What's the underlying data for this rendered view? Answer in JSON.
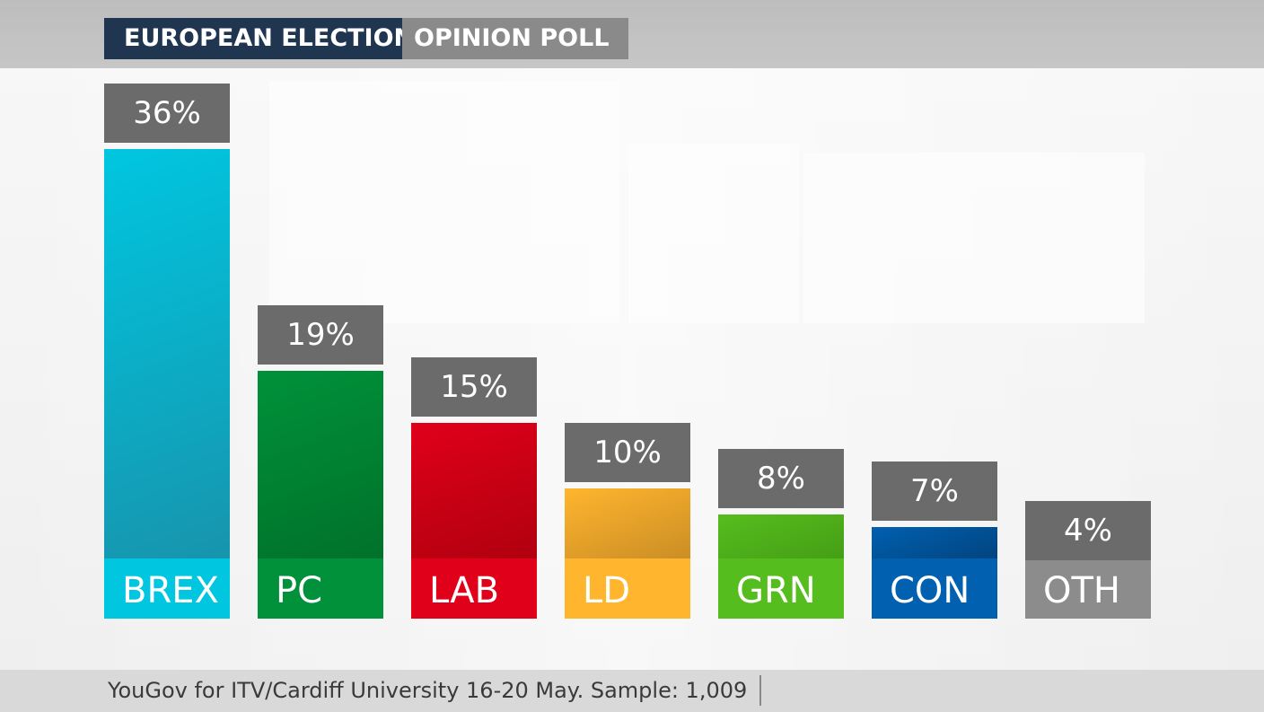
{
  "header": {
    "title": "EUROPEAN ELECTION",
    "subtitle": "OPINION POLL"
  },
  "footer": {
    "source": "YouGov for ITV/Cardiff University 16-20 May. Sample: 1,009"
  },
  "chart_data": {
    "type": "bar",
    "title": "EUROPEAN ELECTION OPINION POLL",
    "xlabel": "",
    "ylabel": "",
    "ylim": [
      0,
      36
    ],
    "grid": false,
    "categories": [
      "BREX",
      "PC",
      "LAB",
      "LD",
      "GRN",
      "CON",
      "OTH"
    ],
    "values": [
      36,
      19,
      15,
      10,
      8,
      7,
      4
    ],
    "value_labels": [
      "36%",
      "19%",
      "15%",
      "10%",
      "8%",
      "7%",
      "4%"
    ],
    "colors": [
      "#00c6e0",
      "#00913a",
      "#e0001a",
      "#ffb52e",
      "#56bd1e",
      "#0160b0",
      "#8c8c8c"
    ],
    "dark_colors": [
      "#1a8ea6",
      "#006a25",
      "#a0000c",
      "#b07a20",
      "#3a8a10",
      "#012e5a",
      "#3a3a3a"
    ]
  }
}
